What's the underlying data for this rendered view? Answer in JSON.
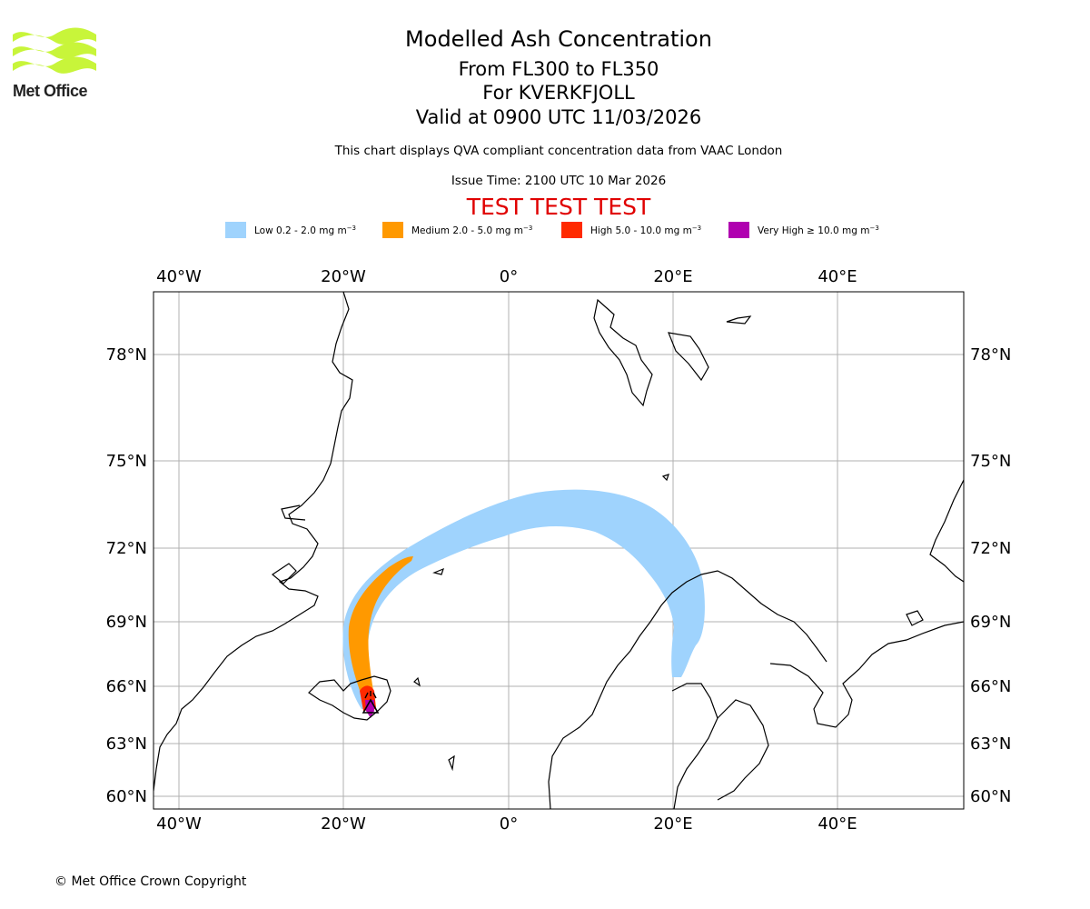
{
  "logo": {
    "text": "Met Office",
    "wave_color": "#c8f53a"
  },
  "title": {
    "line1": "Modelled Ash Concentration",
    "line2": "From FL300 to FL350",
    "line3": "For KVERKFJOLL",
    "line4": "Valid at 0900 UTC 11/03/2026"
  },
  "subtitle": "This chart displays QVA compliant concentration data from VAAC London",
  "issue_time": "Issue Time: 2100 UTC 10 Mar 2026",
  "test_banner": {
    "text": "TEST TEST TEST",
    "color": "#e00000"
  },
  "legend": [
    {
      "label": "Low 0.2 - 2.0 mg m",
      "exp": "−3",
      "color": "#9fd3fd"
    },
    {
      "label": "Medium 2.0 - 5.0 mg m",
      "exp": "−3",
      "color": "#ff9900"
    },
    {
      "label": "High 5.0 - 10.0 mg m",
      "exp": "−3",
      "color": "#ff2a00"
    },
    {
      "label": "Very High  ≥  10.0 mg m",
      "exp": "−3",
      "color": "#b000b0"
    }
  ],
  "map": {
    "lon_labels": [
      "40°W",
      "20°W",
      "0°",
      "20°E",
      "40°E"
    ],
    "lat_labels": [
      "78°N",
      "75°N",
      "72°N",
      "69°N",
      "66°N",
      "63°N",
      "60°N"
    ],
    "grid": true,
    "volcano": {
      "name": "KVERKFJOLL",
      "marker": "volcano-triangle-icon"
    }
  },
  "copyright": "© Met Office Crown Copyright"
}
